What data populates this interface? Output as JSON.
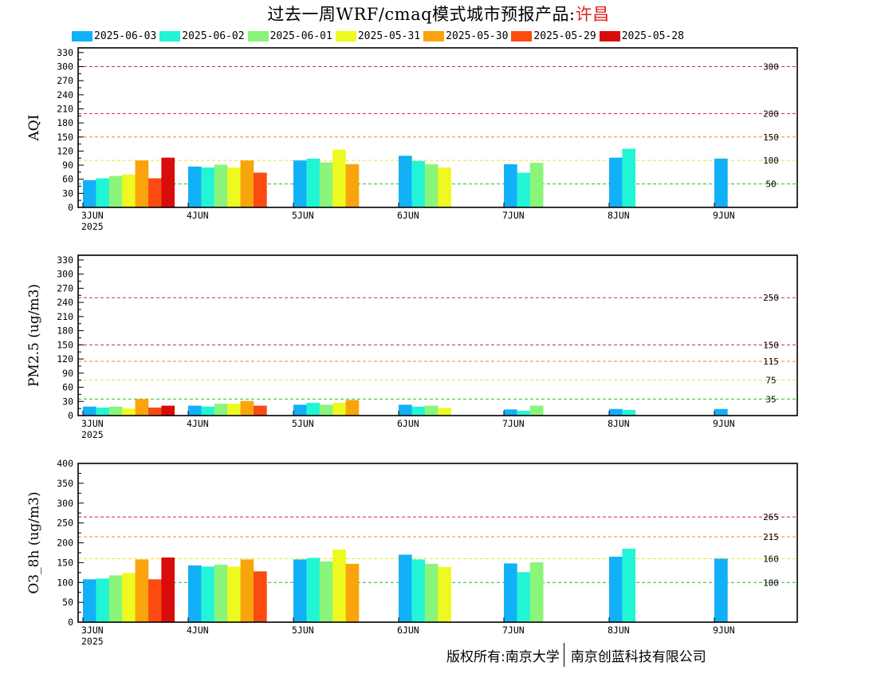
{
  "title": {
    "main": "过去一周WRF/cmaq模式城市预报产品:",
    "city": "许昌"
  },
  "footer": {
    "left": "版权所有:南京大学",
    "right": "南京创蓝科技有限公司"
  },
  "colors": {
    "2025-06-03": "#12b0f7",
    "2025-06-02": "#22f5d6",
    "2025-06-01": "#8af57a",
    "2025-05-31": "#eef91f",
    "2025-05-30": "#f9a40b",
    "2025-05-29": "#fb4b10",
    "2025-05-28": "#d90c0c"
  },
  "chart_data": [
    {
      "type": "bar",
      "ylabel": "AQI",
      "categories": [
        "3JUN",
        "4JUN",
        "5JUN",
        "6JUN",
        "7JUN",
        "8JUN",
        "9JUN"
      ],
      "year_label": "2025",
      "ylim": [
        0,
        340
      ],
      "yticks": [
        0,
        30,
        60,
        90,
        120,
        150,
        180,
        210,
        240,
        270,
        300,
        330
      ],
      "yticks_extra": [
        15,
        45,
        75,
        105,
        135,
        165,
        195,
        225,
        255,
        285,
        315
      ],
      "thresholds": [
        {
          "value": 300,
          "label": "300",
          "color": "#c0306a"
        },
        {
          "value": 200,
          "label": "200",
          "color": "#e0203a"
        },
        {
          "value": 150,
          "label": "150",
          "color": "#f08820"
        },
        {
          "value": 100,
          "label": "100",
          "color": "#f0e020"
        },
        {
          "value": 50,
          "label": "50",
          "color": "#20c020"
        }
      ],
      "series": [
        {
          "name": "2025-06-03",
          "values": [
            58,
            87,
            100,
            110,
            92,
            106,
            104
          ]
        },
        {
          "name": "2025-06-02",
          "values": [
            62,
            85,
            104,
            99,
            74,
            125,
            null
          ]
        },
        {
          "name": "2025-06-01",
          "values": [
            67,
            91,
            96,
            92,
            95,
            null,
            null
          ]
        },
        {
          "name": "2025-05-31",
          "values": [
            70,
            85,
            123,
            85,
            null,
            null,
            null
          ]
        },
        {
          "name": "2025-05-30",
          "values": [
            100,
            100,
            92,
            null,
            null,
            null,
            null
          ]
        },
        {
          "name": "2025-05-29",
          "values": [
            62,
            74,
            null,
            null,
            null,
            null,
            null
          ]
        },
        {
          "name": "2025-05-28",
          "values": [
            106,
            null,
            null,
            null,
            null,
            null,
            null
          ]
        }
      ]
    },
    {
      "type": "bar",
      "ylabel": "PM2.5 (ug/m3)",
      "categories": [
        "3JUN",
        "4JUN",
        "5JUN",
        "6JUN",
        "7JUN",
        "8JUN",
        "9JUN"
      ],
      "year_label": "2025",
      "ylim": [
        0,
        340
      ],
      "yticks": [
        0,
        30,
        60,
        90,
        120,
        150,
        180,
        210,
        240,
        270,
        300,
        330
      ],
      "yticks_extra": [
        15,
        45,
        75,
        105,
        135,
        165,
        195,
        225,
        255,
        285,
        315
      ],
      "thresholds": [
        {
          "value": 250,
          "label": "250",
          "color": "#c0306a"
        },
        {
          "value": 150,
          "label": "150",
          "color": "#e0203a"
        },
        {
          "value": 115,
          "label": "115",
          "color": "#f08820"
        },
        {
          "value": 75,
          "label": "75",
          "color": "#f0e020"
        },
        {
          "value": 35,
          "label": "35",
          "color": "#20c020"
        }
      ],
      "series": [
        {
          "name": "2025-06-03",
          "values": [
            19,
            21,
            23,
            23,
            13,
            14,
            14
          ]
        },
        {
          "name": "2025-06-02",
          "values": [
            17,
            19,
            27,
            19,
            10,
            12,
            null
          ]
        },
        {
          "name": "2025-06-01",
          "values": [
            19,
            25,
            23,
            21,
            21,
            null,
            null
          ]
        },
        {
          "name": "2025-05-31",
          "values": [
            15,
            25,
            27,
            16,
            null,
            null,
            null
          ]
        },
        {
          "name": "2025-05-30",
          "values": [
            35,
            31,
            33,
            null,
            null,
            null,
            null
          ]
        },
        {
          "name": "2025-05-29",
          "values": [
            17,
            21,
            null,
            null,
            null,
            null,
            null
          ]
        },
        {
          "name": "2025-05-28",
          "values": [
            21,
            null,
            null,
            null,
            null,
            null,
            null
          ]
        }
      ]
    },
    {
      "type": "bar",
      "ylabel": "O3_8h (ug/m3)",
      "categories": [
        "3JUN",
        "4JUN",
        "5JUN",
        "6JUN",
        "7JUN",
        "8JUN",
        "9JUN"
      ],
      "year_label": "2025",
      "ylim": [
        0,
        400
      ],
      "yticks": [
        0,
        50,
        100,
        150,
        200,
        250,
        300,
        350,
        400
      ],
      "yticks_extra": [
        25,
        75,
        125,
        175,
        225,
        275,
        325,
        375
      ],
      "thresholds": [
        {
          "value": 265,
          "label": "265",
          "color": "#e0203a"
        },
        {
          "value": 215,
          "label": "215",
          "color": "#f08820"
        },
        {
          "value": 160,
          "label": "160",
          "color": "#f0e020"
        },
        {
          "value": 100,
          "label": "100",
          "color": "#20c020"
        }
      ],
      "series": [
        {
          "name": "2025-06-03",
          "values": [
            108,
            143,
            158,
            170,
            148,
            165,
            160
          ]
        },
        {
          "name": "2025-06-02",
          "values": [
            110,
            140,
            162,
            158,
            126,
            185,
            null
          ]
        },
        {
          "name": "2025-06-01",
          "values": [
            118,
            145,
            153,
            147,
            151,
            null,
            null
          ]
        },
        {
          "name": "2025-05-31",
          "values": [
            124,
            140,
            183,
            139,
            null,
            null,
            null
          ]
        },
        {
          "name": "2025-05-30",
          "values": [
            158,
            158,
            147,
            null,
            null,
            null,
            null
          ]
        },
        {
          "name": "2025-05-29",
          "values": [
            108,
            128,
            null,
            null,
            null,
            null,
            null
          ]
        },
        {
          "name": "2025-05-28",
          "values": [
            163,
            null,
            null,
            null,
            null,
            null,
            null
          ]
        }
      ]
    }
  ]
}
